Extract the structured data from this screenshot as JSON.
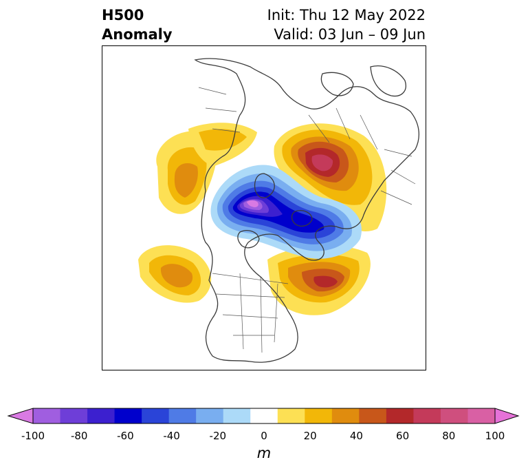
{
  "title": {
    "line1": "H500",
    "line2": "Anomaly"
  },
  "subtitle": {
    "init": "Init: Thu 12 May 2022",
    "valid": "Valid: 03 Jun – 09 Jun"
  },
  "colorbar": {
    "unit": "m",
    "min": -100,
    "max": 100,
    "levels": [
      -100,
      -90,
      -80,
      -70,
      -60,
      -50,
      -40,
      -30,
      -20,
      -10,
      10,
      20,
      30,
      40,
      50,
      60,
      70,
      80,
      90,
      100
    ],
    "ticks": [
      {
        "value": -100,
        "label": "-100"
      },
      {
        "value": -80,
        "label": "-80"
      },
      {
        "value": -60,
        "label": "-60"
      },
      {
        "value": -40,
        "label": "-40"
      },
      {
        "value": -20,
        "label": "-20"
      },
      {
        "value": 0,
        "label": "0"
      },
      {
        "value": 20,
        "label": "20"
      },
      {
        "value": 40,
        "label": "40"
      },
      {
        "value": 60,
        "label": "60"
      },
      {
        "value": 80,
        "label": "80"
      },
      {
        "value": 100,
        "label": "100"
      }
    ],
    "colors": [
      "#d97ae3",
      "#a05ee0",
      "#6e3ed8",
      "#3c20cf",
      "#0000cc",
      "#2a44d8",
      "#4f7be6",
      "#79aef0",
      "#acdaf8",
      "#ffffff",
      "#fde054",
      "#f2b708",
      "#e08c0e",
      "#c8571a",
      "#b3282a",
      "#c43a5a",
      "#cf4f7e",
      "#d960a4",
      "#e572d8"
    ]
  },
  "anomalies": [
    {
      "name": "central-low",
      "value": -100,
      "color_key": "negative"
    },
    {
      "name": "high-eurasia",
      "value": 70,
      "color_key": "positive"
    },
    {
      "name": "high-atlantic",
      "value": 60,
      "color_key": "positive"
    },
    {
      "name": "high-pacific",
      "value": 40,
      "color_key": "positive"
    },
    {
      "name": "high-alaska",
      "value": 40,
      "color_key": "positive"
    }
  ]
}
